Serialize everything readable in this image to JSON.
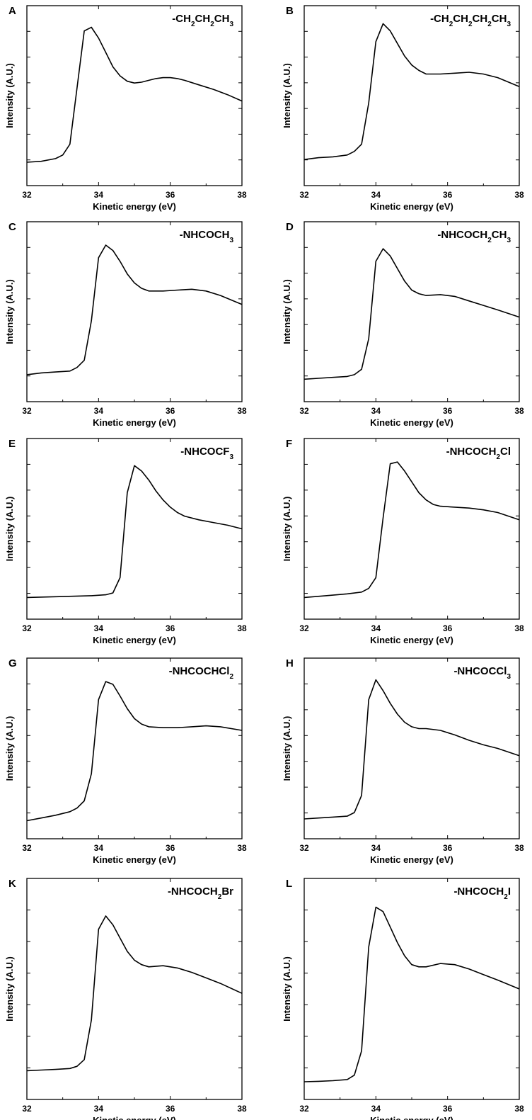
{
  "chart_data": [
    {
      "type": "line",
      "panel": "A",
      "title_parts": [
        [
          "-CH",
          ""
        ],
        [
          "2",
          "sub"
        ],
        [
          "CH",
          ""
        ],
        [
          "2",
          "sub"
        ],
        [
          "CH",
          ""
        ],
        [
          "3",
          "sub"
        ]
      ],
      "xlabel": "Kinetic energy (eV)",
      "ylabel": "Intensity (A.U.)",
      "xlim": [
        32,
        38
      ],
      "ylim": [
        0,
        1
      ],
      "xticks": [
        32,
        34,
        36,
        38
      ],
      "xtick_labels": [
        "32",
        "34",
        "36",
        "38"
      ],
      "x": [
        32.0,
        32.4,
        32.8,
        33.0,
        33.2,
        33.6,
        33.8,
        34.0,
        34.2,
        34.4,
        34.6,
        34.8,
        35.0,
        35.2,
        35.4,
        35.6,
        35.8,
        36.0,
        36.2,
        36.4,
        36.8,
        37.2,
        37.6,
        38.0
      ],
      "y": [
        0.13,
        0.135,
        0.15,
        0.17,
        0.23,
        0.86,
        0.88,
        0.82,
        0.74,
        0.66,
        0.61,
        0.58,
        0.57,
        0.575,
        0.585,
        0.595,
        0.6,
        0.6,
        0.595,
        0.585,
        0.56,
        0.535,
        0.505,
        0.47
      ]
    },
    {
      "type": "line",
      "panel": "B",
      "title_parts": [
        [
          "-CH",
          ""
        ],
        [
          "2",
          "sub"
        ],
        [
          "CH",
          ""
        ],
        [
          "2",
          "sub"
        ],
        [
          "CH",
          ""
        ],
        [
          "2",
          "sub"
        ],
        [
          "CH",
          ""
        ],
        [
          "3",
          "sub"
        ]
      ],
      "xlabel": "Kinetic energy (eV)",
      "ylabel": "Intensity (A.U.)",
      "xlim": [
        32,
        38
      ],
      "ylim": [
        0,
        1
      ],
      "xticks": [
        32,
        34,
        36,
        38
      ],
      "xtick_labels": [
        "32",
        "34",
        "36",
        "38"
      ],
      "x": [
        32.0,
        32.4,
        32.8,
        33.2,
        33.4,
        33.6,
        33.8,
        34.0,
        34.2,
        34.4,
        34.6,
        34.8,
        35.0,
        35.2,
        35.4,
        35.8,
        36.2,
        36.6,
        37.0,
        37.4,
        38.0
      ],
      "y": [
        0.145,
        0.155,
        0.16,
        0.17,
        0.19,
        0.23,
        0.46,
        0.8,
        0.9,
        0.86,
        0.79,
        0.72,
        0.67,
        0.64,
        0.62,
        0.62,
        0.625,
        0.63,
        0.62,
        0.6,
        0.55
      ]
    },
    {
      "type": "line",
      "panel": "C",
      "title_parts": [
        [
          "-NHCOCH",
          ""
        ],
        [
          "3",
          "sub"
        ]
      ],
      "xlabel": "Kinetic energy (eV)",
      "ylabel": "Intensity (A.U.)",
      "xlim": [
        32,
        38
      ],
      "ylim": [
        0,
        1
      ],
      "xticks": [
        32,
        34,
        36,
        38
      ],
      "xtick_labels": [
        "32",
        "34",
        "36",
        "38"
      ],
      "x": [
        32.0,
        32.4,
        32.8,
        33.2,
        33.4,
        33.6,
        33.8,
        34.0,
        34.2,
        34.4,
        34.6,
        34.8,
        35.0,
        35.2,
        35.4,
        35.8,
        36.2,
        36.6,
        37.0,
        37.4,
        38.0
      ],
      "y": [
        0.15,
        0.16,
        0.165,
        0.17,
        0.19,
        0.23,
        0.45,
        0.8,
        0.87,
        0.84,
        0.78,
        0.71,
        0.66,
        0.63,
        0.615,
        0.615,
        0.62,
        0.625,
        0.615,
        0.59,
        0.54
      ]
    },
    {
      "type": "line",
      "panel": "D",
      "title_parts": [
        [
          "-NHCOCH",
          ""
        ],
        [
          "2",
          "sub"
        ],
        [
          "CH",
          ""
        ],
        [
          "3",
          "sub"
        ]
      ],
      "xlabel": "Kinetic energy (eV)",
      "ylabel": "Intensity (A.U.)",
      "xlim": [
        32,
        38
      ],
      "ylim": [
        0,
        1
      ],
      "xticks": [
        32,
        34,
        36,
        38
      ],
      "xtick_labels": [
        "32",
        "34",
        "36",
        "38"
      ],
      "x": [
        32.0,
        32.4,
        32.8,
        33.2,
        33.4,
        33.6,
        33.8,
        34.0,
        34.2,
        34.4,
        34.6,
        34.8,
        35.0,
        35.2,
        35.4,
        35.8,
        36.2,
        36.6,
        37.0,
        37.4,
        38.0
      ],
      "y": [
        0.125,
        0.13,
        0.135,
        0.14,
        0.15,
        0.18,
        0.35,
        0.78,
        0.85,
        0.81,
        0.74,
        0.67,
        0.62,
        0.6,
        0.59,
        0.595,
        0.585,
        0.56,
        0.535,
        0.51,
        0.47
      ]
    },
    {
      "type": "line",
      "panel": "E",
      "title_parts": [
        [
          "-NHCOCF",
          ""
        ],
        [
          "3",
          "sub"
        ]
      ],
      "xlabel": "Kinetic energy (eV)",
      "ylabel": "Intensity (A.U.)",
      "xlim": [
        32,
        38
      ],
      "ylim": [
        0,
        1
      ],
      "xticks": [
        32,
        34,
        36,
        38
      ],
      "xtick_labels": [
        "32",
        "34",
        "36",
        "38"
      ],
      "x": [
        32.0,
        33.0,
        33.8,
        34.2,
        34.4,
        34.6,
        34.8,
        35.0,
        35.2,
        35.4,
        35.6,
        35.8,
        36.0,
        36.2,
        36.4,
        36.8,
        37.2,
        37.6,
        38.0
      ],
      "y": [
        0.12,
        0.125,
        0.13,
        0.135,
        0.145,
        0.23,
        0.7,
        0.85,
        0.82,
        0.77,
        0.71,
        0.66,
        0.62,
        0.59,
        0.57,
        0.55,
        0.535,
        0.52,
        0.5
      ]
    },
    {
      "type": "line",
      "panel": "F",
      "title_parts": [
        [
          "-NHCOCH",
          ""
        ],
        [
          "2",
          "sub"
        ],
        [
          "Cl",
          ""
        ]
      ],
      "xlabel": "Kinetic energy (eV)",
      "ylabel": "Intensity (A.U.)",
      "xlim": [
        32,
        38
      ],
      "ylim": [
        0,
        1
      ],
      "xticks": [
        32,
        34,
        36,
        38
      ],
      "xtick_labels": [
        "32",
        "34",
        "36",
        "38"
      ],
      "x": [
        32.0,
        32.6,
        33.2,
        33.6,
        33.8,
        34.0,
        34.2,
        34.4,
        34.6,
        34.8,
        35.0,
        35.2,
        35.4,
        35.6,
        35.8,
        36.2,
        36.6,
        37.0,
        37.4,
        38.0
      ],
      "y": [
        0.12,
        0.13,
        0.14,
        0.15,
        0.17,
        0.23,
        0.56,
        0.86,
        0.87,
        0.82,
        0.76,
        0.7,
        0.66,
        0.635,
        0.625,
        0.62,
        0.615,
        0.605,
        0.59,
        0.55
      ]
    },
    {
      "type": "line",
      "panel": "G",
      "title_parts": [
        [
          "-NHCOCHCl",
          ""
        ],
        [
          "2",
          "sub"
        ]
      ],
      "xlabel": "Kinetic energy (eV)",
      "ylabel": "Intensity (A.U.)",
      "xlim": [
        32,
        38
      ],
      "ylim": [
        0,
        1
      ],
      "xticks": [
        32,
        34,
        36,
        38
      ],
      "xtick_labels": [
        "32",
        "34",
        "36",
        "38"
      ],
      "x": [
        32.0,
        32.4,
        32.8,
        33.2,
        33.4,
        33.6,
        33.8,
        34.0,
        34.2,
        34.4,
        34.6,
        34.8,
        35.0,
        35.2,
        35.4,
        35.8,
        36.2,
        36.6,
        37.0,
        37.4,
        38.0
      ],
      "y": [
        0.1,
        0.115,
        0.13,
        0.15,
        0.17,
        0.21,
        0.36,
        0.77,
        0.87,
        0.855,
        0.79,
        0.72,
        0.665,
        0.635,
        0.62,
        0.615,
        0.615,
        0.62,
        0.625,
        0.62,
        0.6
      ]
    },
    {
      "type": "line",
      "panel": "H",
      "title_parts": [
        [
          "-NHCOCCl",
          ""
        ],
        [
          "3",
          "sub"
        ]
      ],
      "xlabel": "Kinetic energy (eV)",
      "ylabel": "Intensity (A.U.)",
      "xlim": [
        32,
        38
      ],
      "ylim": [
        0,
        1
      ],
      "xticks": [
        32,
        34,
        36,
        38
      ],
      "xtick_labels": [
        "32",
        "34",
        "36",
        "38"
      ],
      "x": [
        32.0,
        32.4,
        32.8,
        33.2,
        33.4,
        33.6,
        33.8,
        34.0,
        34.2,
        34.4,
        34.6,
        34.8,
        35.0,
        35.2,
        35.4,
        35.8,
        36.2,
        36.6,
        37.0,
        37.4,
        38.0
      ],
      "y": [
        0.11,
        0.115,
        0.12,
        0.125,
        0.145,
        0.24,
        0.77,
        0.88,
        0.82,
        0.75,
        0.69,
        0.645,
        0.62,
        0.61,
        0.61,
        0.6,
        0.575,
        0.545,
        0.52,
        0.5,
        0.46
      ]
    },
    {
      "type": "line",
      "panel": "K",
      "title_parts": [
        [
          "-NHCOCH",
          ""
        ],
        [
          "2",
          "sub"
        ],
        [
          "Br",
          ""
        ]
      ],
      "xlabel": "Kinetic energy (eV)",
      "ylabel": "Intensity (A.U.)",
      "xlim": [
        32,
        38
      ],
      "ylim": [
        0,
        1
      ],
      "xticks": [
        32,
        34,
        36,
        38
      ],
      "xtick_labels": [
        "32",
        "34",
        "36",
        "38"
      ],
      "x": [
        32.0,
        32.4,
        32.8,
        33.2,
        33.4,
        33.6,
        33.8,
        34.0,
        34.2,
        34.4,
        34.6,
        34.8,
        35.0,
        35.2,
        35.4,
        35.8,
        36.2,
        36.6,
        37.0,
        37.4,
        38.0
      ],
      "y": [
        0.13,
        0.133,
        0.136,
        0.14,
        0.15,
        0.18,
        0.36,
        0.77,
        0.83,
        0.79,
        0.73,
        0.67,
        0.63,
        0.61,
        0.6,
        0.605,
        0.595,
        0.575,
        0.55,
        0.525,
        0.48
      ]
    },
    {
      "type": "line",
      "panel": "L",
      "title_parts": [
        [
          "-NHCOCH",
          ""
        ],
        [
          "2",
          "sub"
        ],
        [
          "I",
          ""
        ]
      ],
      "xlabel": "Kinetic energy (eV)",
      "ylabel": "Intensity (A.U.)",
      "xlim": [
        32,
        38
      ],
      "ylim": [
        0,
        1
      ],
      "xticks": [
        32,
        34,
        36,
        38
      ],
      "xtick_labels": [
        "32",
        "34",
        "36",
        "38"
      ],
      "x": [
        32.0,
        32.4,
        32.8,
        33.2,
        33.4,
        33.6,
        33.8,
        34.0,
        34.2,
        34.4,
        34.6,
        34.8,
        35.0,
        35.2,
        35.4,
        35.8,
        36.2,
        36.6,
        37.0,
        37.4,
        38.0
      ],
      "y": [
        0.08,
        0.082,
        0.085,
        0.09,
        0.11,
        0.22,
        0.69,
        0.87,
        0.85,
        0.78,
        0.71,
        0.65,
        0.61,
        0.6,
        0.6,
        0.615,
        0.61,
        0.59,
        0.565,
        0.54,
        0.5
      ]
    }
  ]
}
